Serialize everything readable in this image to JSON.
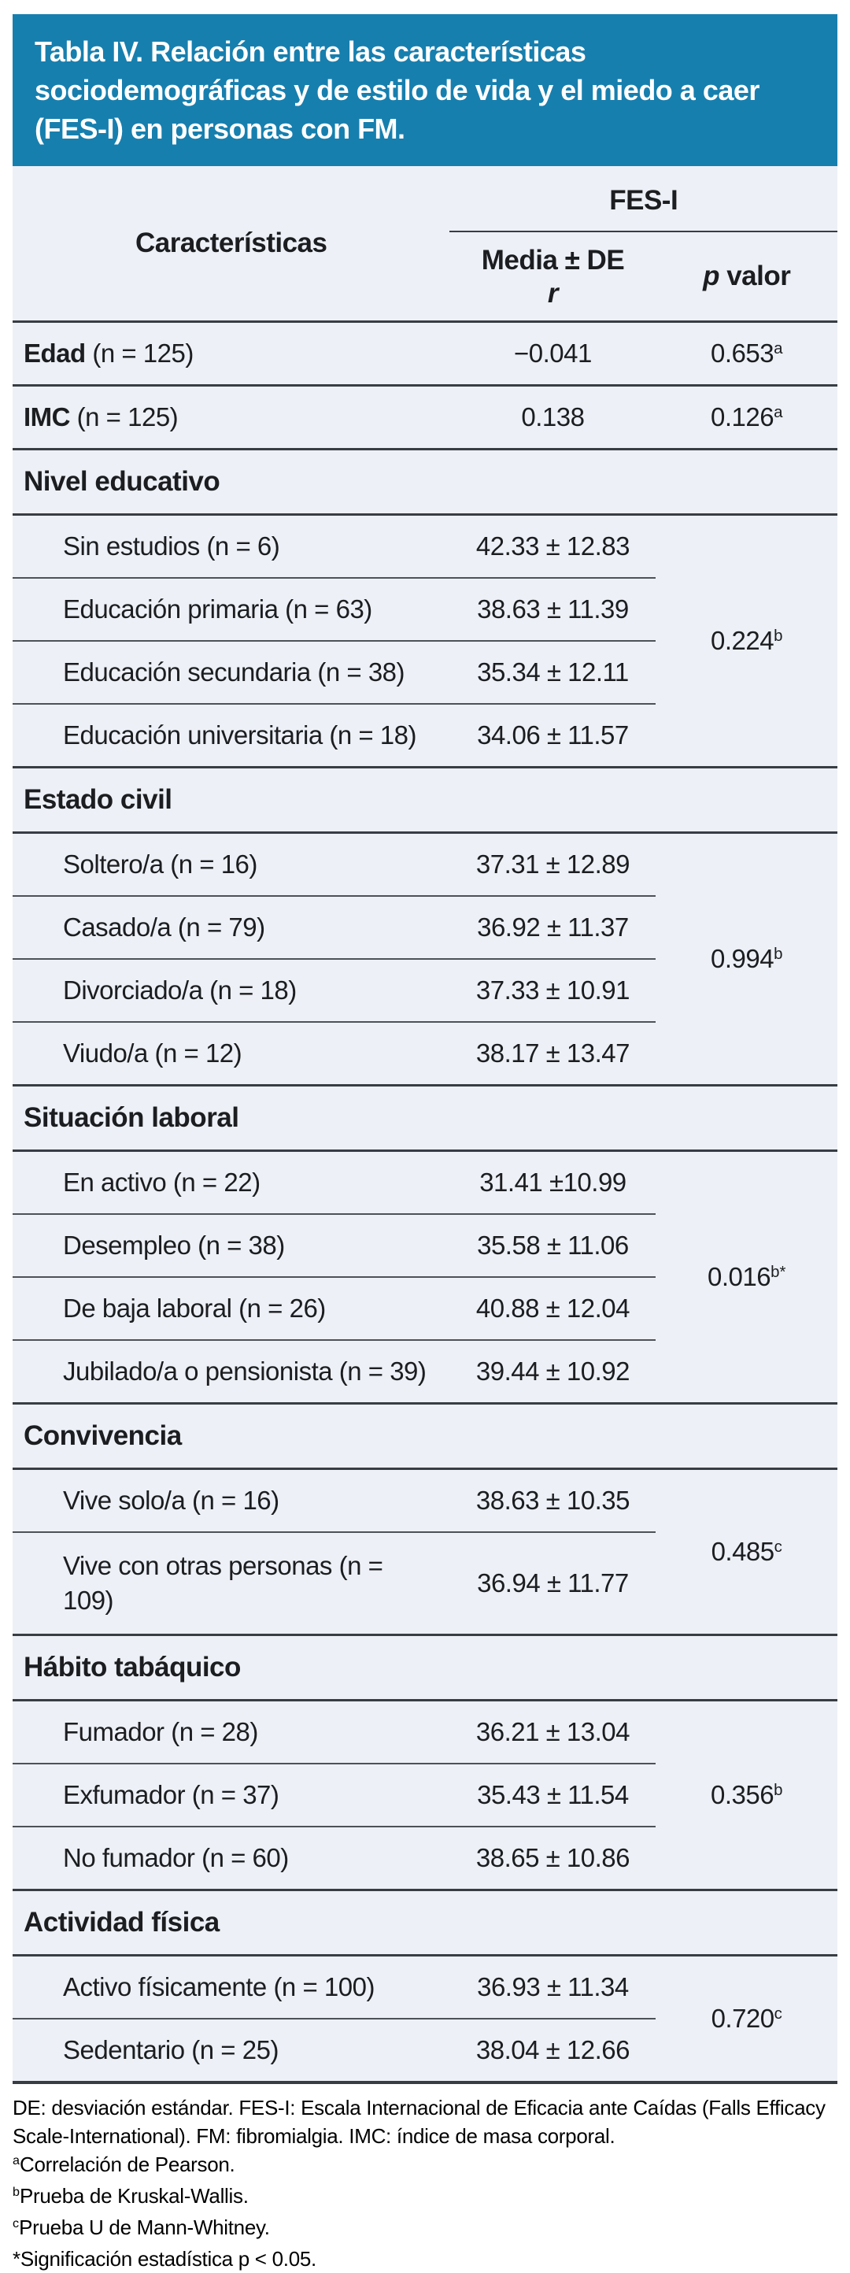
{
  "colors": {
    "title_bg": "#177FAE",
    "title_text": "#FFFFFF",
    "table_bg": "#EDF0F6",
    "text": "#1B1D20",
    "line_strong": "#383D44",
    "line_light": "#4D5158"
  },
  "title": "Tabla IV. Relación entre las características\nsociodemográficas y de estilo de vida y el miedo a caer\n(FES-I) en personas con FM.",
  "header": {
    "caracteristicas": "Características",
    "fesi": "FES-I",
    "media": "Media ± DE",
    "media_sub": "r",
    "p_italic": "p",
    "p_rest": " valor"
  },
  "table": {
    "edad": {
      "bold": "Edad",
      "rest": " (n = 125)",
      "media": "−0.041",
      "p": "0.653",
      "p_sup": "a"
    },
    "imc": {
      "bold": "IMC",
      "rest": " (n = 125)",
      "media": "0.138",
      "p": "0.126",
      "p_sup": "a"
    },
    "nivel_educativo": {
      "title": "Nivel educativo",
      "p": "0.224",
      "p_sup": "b",
      "items": [
        {
          "label": "Sin estudios (n = 6)",
          "media": "42.33 ± 12.83"
        },
        {
          "label": "Educación primaria (n = 63)",
          "media": "38.63 ± 11.39"
        },
        {
          "label": "Educación secundaria (n = 38)",
          "media": "35.34 ± 12.11"
        },
        {
          "label": "Educación universitaria (n = 18)",
          "media": "34.06 ± 11.57"
        }
      ]
    },
    "estado_civil": {
      "title": "Estado civil",
      "p": "0.994",
      "p_sup": "b",
      "items": [
        {
          "label": "Soltero/a (n = 16)",
          "media": "37.31 ± 12.89"
        },
        {
          "label": "Casado/a (n = 79)",
          "media": "36.92 ± 11.37"
        },
        {
          "label": "Divorciado/a (n = 18)",
          "media": "37.33 ± 10.91"
        },
        {
          "label": "Viudo/a (n = 12)",
          "media": "38.17 ± 13.47"
        }
      ]
    },
    "situacion_laboral": {
      "title": "Situación laboral",
      "p": "0.016",
      "p_sup": "b*",
      "items": [
        {
          "label": "En activo (n = 22)",
          "media": "31.41 ±10.99"
        },
        {
          "label": "Desempleo (n = 38)",
          "media": "35.58 ± 11.06"
        },
        {
          "label": "De baja laboral (n = 26)",
          "media": "40.88 ± 12.04"
        },
        {
          "label": "Jubilado/a o pensionista (n = 39)",
          "media": "39.44 ± 10.92"
        }
      ]
    },
    "convivencia": {
      "title": "Convivencia",
      "p": "0.485",
      "p_sup": "c",
      "items": [
        {
          "label": "Vive solo/a (n = 16)",
          "media": "38.63 ± 10.35"
        },
        {
          "label": "Vive con otras personas (n = 109)",
          "media": "36.94 ± 11.77"
        }
      ]
    },
    "habito_tabaquico": {
      "title": "Hábito tabáquico",
      "p": "0.356",
      "p_sup": "b",
      "items": [
        {
          "label": "Fumador (n = 28)",
          "media": "36.21 ± 13.04"
        },
        {
          "label": "Exfumador (n = 37)",
          "media": "35.43 ± 11.54"
        },
        {
          "label": "No fumador (n = 60)",
          "media": "38.65 ± 10.86"
        }
      ]
    },
    "actividad_fisica": {
      "title": "Actividad física",
      "p": "0.720",
      "p_sup": "c",
      "items": [
        {
          "label": "Activo físicamente (n = 100)",
          "media": "36.93 ± 11.34"
        },
        {
          "label": "Sedentario (n = 25)",
          "media": "38.04 ± 12.66"
        }
      ]
    }
  },
  "footnotes": {
    "abbrev": "DE: desviación estándar. FES-I: Escala Internacional de Eficacia ante Caídas (Falls Efficacy Scale-International). FM: fibromialgia. IMC: índice de masa corporal.",
    "a": {
      "sup": "a",
      "text": "Correlación de Pearson."
    },
    "b": {
      "sup": "b",
      "text": "Prueba de Kruskal-Wallis."
    },
    "c": {
      "sup": "c",
      "text": "Prueba U de Mann-Whitney."
    },
    "sig": "*Significación estadística p < 0.05."
  }
}
